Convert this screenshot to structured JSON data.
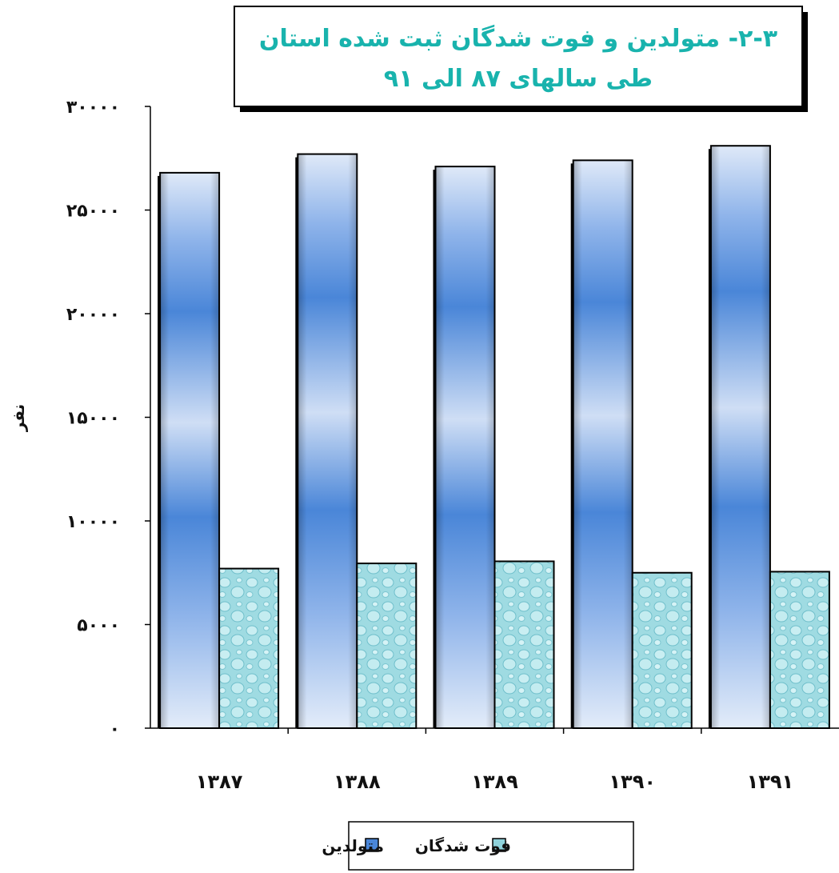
{
  "chart_data": {
    "type": "bar",
    "title_lines": [
      "۲-۳- متولدین و فوت شدگان ثبت شده استان",
      "طی سالهای ۸۷ الی ۹۱"
    ],
    "ylabel": "نفر",
    "xlabel": "",
    "categories": [
      "۱۳۸۷",
      "۱۳۸۸",
      "۱۳۸۹",
      "۱۳۹۰",
      "۱۳۹۱"
    ],
    "ylim": [
      0,
      30000
    ],
    "yticks": [
      0,
      5000,
      10000,
      15000,
      20000,
      25000,
      30000
    ],
    "ytick_labels": [
      "۰",
      "۵۰۰۰",
      "۱۰۰۰۰",
      "۱۵۰۰۰",
      "۲۰۰۰۰",
      "۲۵۰۰۰",
      "۳۰۰۰۰"
    ],
    "series": [
      {
        "name": "متولدین",
        "values": [
          26800,
          27700,
          27100,
          27400,
          28100
        ],
        "color": "#4a86d8"
      },
      {
        "name": "فوت شدگان",
        "values": [
          7700,
          7950,
          8050,
          7500,
          7550
        ],
        "color": "#8fd3dc"
      }
    ],
    "grid": false,
    "legend_position": "bottom"
  }
}
